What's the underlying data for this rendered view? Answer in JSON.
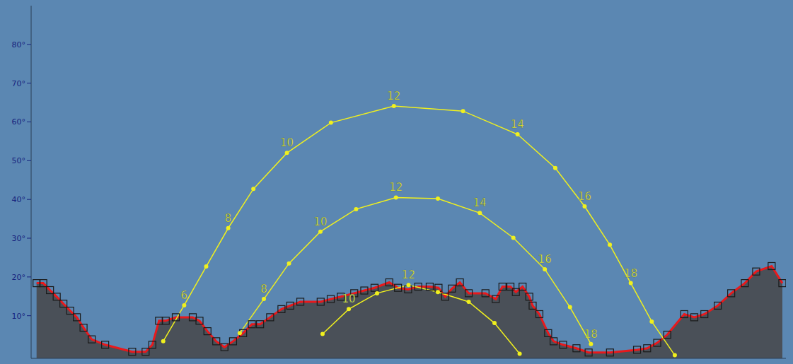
{
  "chart_data": {
    "type": "line",
    "xlim": [
      0,
      360
    ],
    "ylim": [
      -1,
      90
    ],
    "yticks": [
      {
        "value": 10,
        "label": "10°"
      },
      {
        "value": 20,
        "label": "20°"
      },
      {
        "value": 30,
        "label": "30°"
      },
      {
        "value": 40,
        "label": "40°"
      },
      {
        "value": 50,
        "label": "50°"
      },
      {
        "value": 60,
        "label": "60°"
      },
      {
        "value": 70,
        "label": "70°"
      },
      {
        "value": 80,
        "label": "80°"
      }
    ],
    "tick_labels": "y",
    "grid": false,
    "series": [
      {
        "type": "area",
        "color": "#e8191c",
        "marker": "square",
        "line_style": "solid",
        "x": [
          2.6,
          5.8,
          9.0,
          12.2,
          15.4,
          18.6,
          21.8,
          25.0,
          28.9,
          35.3,
          48.2,
          54.6,
          57.8,
          61.0,
          64.2,
          69.0,
          77.1,
          80.3,
          84.1,
          88.3,
          92.2,
          96.3,
          101.1,
          105.3,
          109.2,
          114.0,
          119.4,
          123.6,
          128.4,
          138.1,
          142.9,
          147.7,
          154.1,
          158.9,
          163.8,
          170.8,
          175.0,
          179.8,
          184.6,
          190.1,
          194.3,
          197.5,
          200.7,
          204.5,
          208.7,
          216.7,
          221.6,
          224.8,
          228.6,
          231.2,
          234.4,
          237.6,
          239.2,
          242.4,
          246.6,
          249.2,
          253.7,
          260.1,
          265.9,
          276.1,
          289.0,
          293.8,
          298.6,
          303.4,
          311.5,
          316.3,
          321.1,
          327.5,
          333.9,
          340.4,
          345.8,
          353.2,
          358.3
        ],
        "values": [
          18.4,
          18.4,
          16.6,
          14.9,
          13.1,
          11.3,
          9.6,
          6.9,
          3.9,
          2.5,
          0.7,
          0.7,
          2.5,
          8.7,
          8.7,
          9.6,
          9.6,
          8.7,
          6.0,
          3.4,
          1.9,
          3.4,
          5.5,
          7.8,
          7.8,
          9.6,
          11.7,
          12.6,
          13.6,
          13.6,
          14.3,
          14.9,
          15.8,
          16.5,
          17.2,
          18.6,
          17.2,
          16.8,
          17.5,
          17.5,
          17.2,
          14.9,
          17.0,
          18.6,
          15.8,
          15.8,
          14.3,
          17.5,
          17.5,
          16.1,
          17.5,
          14.9,
          12.6,
          10.4,
          5.5,
          3.4,
          2.5,
          1.6,
          0.5,
          0.5,
          1.2,
          1.6,
          3.0,
          5.1,
          10.4,
          9.6,
          10.4,
          12.6,
          15.8,
          18.4,
          21.4,
          22.8,
          18.4
        ]
      },
      {
        "type": "line",
        "color": "#f0f01e",
        "marker": "circle",
        "line_style": "solid",
        "x": [
          63,
          73,
          83.5,
          94,
          106,
          122,
          143,
          173,
          206,
          232,
          250,
          264,
          276,
          286,
          296,
          307
        ],
        "values": [
          3.4,
          12.7,
          22.7,
          32.6,
          42.7,
          52,
          59.8,
          64.1,
          62.8,
          56.8,
          48.1,
          38.2,
          28.3,
          18.4,
          8.5,
          -0.2
        ],
        "point_labels": [
          null,
          6,
          null,
          8,
          null,
          10,
          null,
          12,
          null,
          14,
          null,
          16,
          null,
          18,
          null,
          null
        ]
      },
      {
        "type": "line",
        "color": "#f0f01e",
        "marker": "circle",
        "line_style": "solid",
        "x": [
          99.5,
          111,
          123,
          138,
          155,
          174,
          194,
          214,
          230,
          245,
          257,
          267
        ],
        "values": [
          5.5,
          14.3,
          23.5,
          31.7,
          37.5,
          40.5,
          40.2,
          36.5,
          30.1,
          22,
          12.2,
          2.7
        ],
        "point_labels": [
          null,
          8,
          null,
          10,
          null,
          12,
          null,
          14,
          null,
          16,
          null,
          18
        ]
      },
      {
        "type": "line",
        "color": "#f0f01e",
        "marker": "circle",
        "line_style": "solid",
        "x": [
          139,
          151.5,
          165,
          180,
          194,
          208.7,
          221,
          233
        ],
        "values": [
          5.3,
          11.7,
          15.8,
          17.9,
          16.1,
          13.6,
          8.1,
          0.2
        ],
        "point_labels": [
          null,
          10,
          null,
          12,
          null,
          null,
          null,
          null
        ]
      }
    ]
  }
}
